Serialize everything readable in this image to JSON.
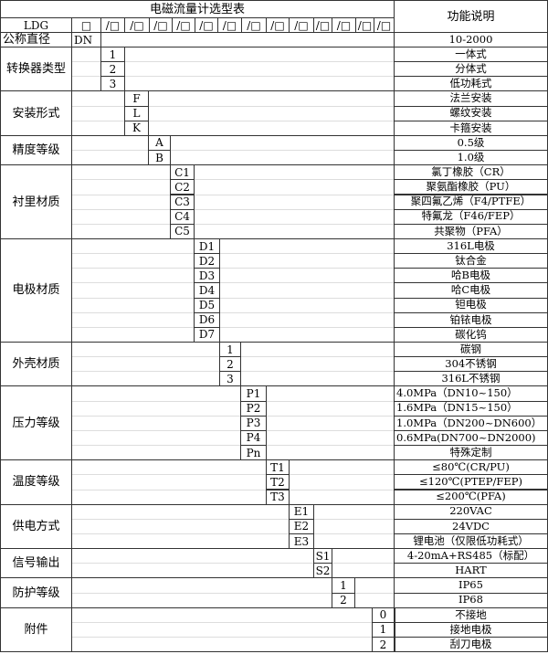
{
  "title": "电磁流量计选型表",
  "function_header": "功能说明",
  "model_row": {
    "prefix": "LDG",
    "first_box": "□",
    "boxes": [
      "/□",
      "/□",
      "/□",
      "/□",
      "/□",
      "/□",
      "/□",
      "/□",
      "/□",
      "/□",
      "/□",
      "/□",
      "/□"
    ]
  },
  "nominal": {
    "label": "公称直径",
    "code": "DN",
    "description": "10-2000"
  },
  "groups": [
    {
      "label": "转换器类型",
      "codes": [
        "1",
        "2",
        "3"
      ],
      "descriptions": [
        "一体式",
        "分体式",
        "低功耗式"
      ]
    },
    {
      "label": "安装形式",
      "codes": [
        "F",
        "L",
        "K"
      ],
      "descriptions": [
        "法兰安装",
        "螺纹安装",
        "卡箍安装"
      ]
    },
    {
      "label": "精度等级",
      "codes": [
        "A",
        "B"
      ],
      "descriptions": [
        "0.5级",
        "1.0级"
      ]
    },
    {
      "label": "衬里材质",
      "codes": [
        "C1",
        "C2",
        "C3",
        "C4",
        "C5"
      ],
      "descriptions": [
        "氯丁橡胶（CR）",
        "聚氨酯橡胶（PU）",
        "聚四氟乙烯（F4/PTFE）",
        "特氟龙（F46/FEP）",
        "共聚物（PFA）"
      ]
    },
    {
      "label": "电极材质",
      "codes": [
        "D1",
        "D2",
        "D3",
        "D4",
        "D5",
        "D6",
        "D7"
      ],
      "descriptions": [
        "316L电极",
        "钛合金",
        "哈B电极",
        "哈C电极",
        "钽电极",
        "铂铱电极",
        "碳化钨"
      ]
    },
    {
      "label": "外壳材质",
      "codes": [
        "1",
        "2",
        "3"
      ],
      "descriptions": [
        "碳钢",
        "304不锈钢",
        "316L不锈钢"
      ]
    },
    {
      "label": "压力等级",
      "codes": [
        "P1",
        "P2",
        "P3",
        "P4",
        "Pn"
      ],
      "descriptions": [
        "4.0MPa（DN10~150）",
        "1.6MPa（DN15~150）",
        "1.0MPa（DN200~DN600）",
        "0.6MPa(DN700~DN2000)",
        "特殊定制"
      ]
    },
    {
      "label": "温度等级",
      "codes": [
        "T1",
        "T2",
        "T3"
      ],
      "descriptions": [
        "≤80℃(CR/PU)",
        "≤120℃(PTEP/FEP)",
        "≤200℃(PFA)"
      ]
    },
    {
      "label": "供电方式",
      "codes": [
        "E1",
        "E2",
        "E3"
      ],
      "descriptions": [
        "220VAC",
        "24VDC",
        "锂电池（仅限低功耗式）"
      ]
    },
    {
      "label": "信号输出",
      "codes": [
        "S1",
        "S2"
      ],
      "descriptions": [
        "4-20mA+RS485（标配）",
        "HART"
      ]
    },
    {
      "label": "防护等级",
      "codes": [
        "1",
        "2"
      ],
      "descriptions": [
        "IP65",
        "IP68"
      ]
    },
    {
      "label": "附件",
      "codes": [
        "0",
        "1",
        "2"
      ],
      "descriptions": [
        "不接地",
        "接地电极",
        "刮刀电极"
      ]
    }
  ]
}
